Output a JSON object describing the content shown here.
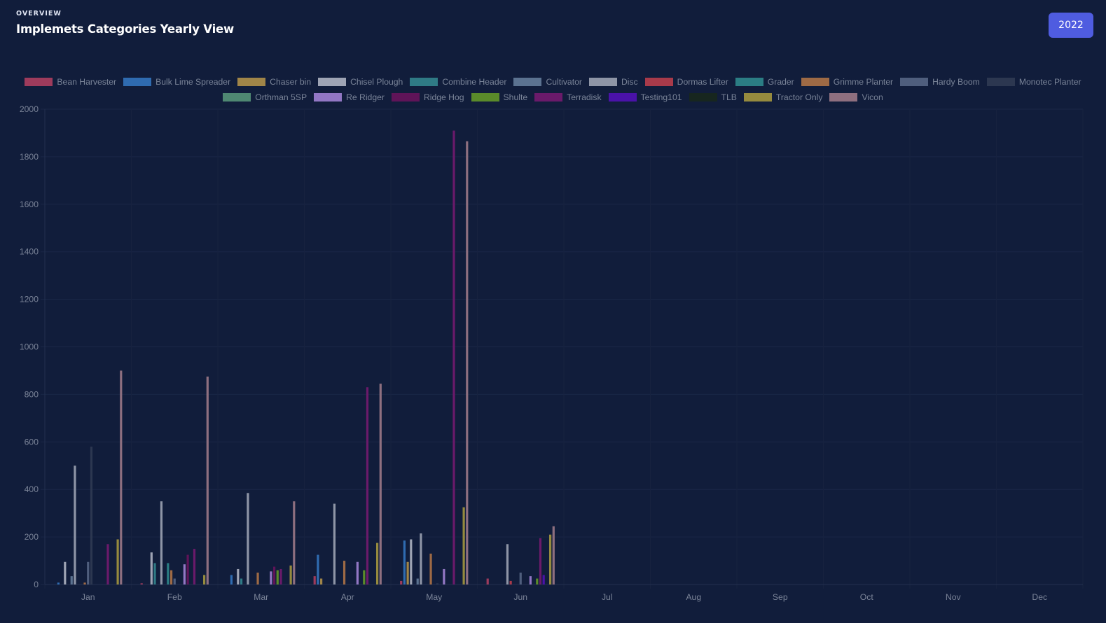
{
  "header": {
    "overline": "OVERVIEW",
    "title": "Implemets Categories Yearly View"
  },
  "year_button": {
    "label": "2022"
  },
  "chart_data": {
    "type": "bar",
    "categories": [
      "Jan",
      "Feb",
      "Mar",
      "Apr",
      "May",
      "Jun",
      "Jul",
      "Aug",
      "Sep",
      "Oct",
      "Nov",
      "Dec"
    ],
    "ylim": [
      0,
      2000
    ],
    "yticks": [
      0,
      200,
      400,
      600,
      800,
      1000,
      1200,
      1400,
      1600,
      1800,
      2000
    ],
    "legend_position": "top",
    "grid": true,
    "series": [
      {
        "name": "Bean Harvester",
        "color": "#9e3b5c",
        "values": [
          0,
          5,
          0,
          35,
          15,
          25,
          0,
          0,
          0,
          0,
          0,
          0
        ]
      },
      {
        "name": "Bulk Lime Spreader",
        "color": "#2f6bb0",
        "values": [
          8,
          0,
          40,
          125,
          185,
          0,
          0,
          0,
          0,
          0,
          0,
          0
        ]
      },
      {
        "name": "Chaser bin",
        "color": "#a08548",
        "values": [
          0,
          0,
          0,
          25,
          95,
          0,
          0,
          0,
          0,
          0,
          0,
          0
        ]
      },
      {
        "name": "Chisel Plough",
        "color": "#9ea4b4",
        "values": [
          95,
          135,
          65,
          0,
          190,
          0,
          0,
          0,
          0,
          0,
          0,
          0
        ]
      },
      {
        "name": "Combine Header",
        "color": "#2f7a85",
        "values": [
          0,
          90,
          25,
          0,
          0,
          0,
          0,
          0,
          0,
          0,
          0,
          0
        ]
      },
      {
        "name": "Cultivator",
        "color": "#5b7290",
        "values": [
          35,
          0,
          0,
          0,
          25,
          0,
          0,
          0,
          0,
          0,
          0,
          0
        ]
      },
      {
        "name": "Disc",
        "color": "#8e95a6",
        "values": [
          500,
          350,
          385,
          340,
          215,
          170,
          0,
          0,
          0,
          0,
          0,
          0
        ]
      },
      {
        "name": "Dormas Lifter",
        "color": "#a83a4a",
        "values": [
          0,
          0,
          0,
          0,
          0,
          15,
          0,
          0,
          0,
          0,
          0,
          0
        ]
      },
      {
        "name": "Grader",
        "color": "#2b7d84",
        "values": [
          0,
          90,
          0,
          0,
          0,
          0,
          0,
          0,
          0,
          0,
          0,
          0
        ]
      },
      {
        "name": "Grimme Planter",
        "color": "#9e6a45",
        "values": [
          8,
          60,
          50,
          100,
          130,
          0,
          0,
          0,
          0,
          0,
          0,
          0
        ]
      },
      {
        "name": "Hardy Boom",
        "color": "#4f5e7d",
        "values": [
          95,
          25,
          0,
          0,
          0,
          50,
          0,
          0,
          0,
          0,
          0,
          0
        ]
      },
      {
        "name": "Monotec Planter",
        "color": "#2c3750",
        "values": [
          580,
          0,
          0,
          0,
          5,
          0,
          0,
          0,
          0,
          0,
          0,
          0
        ]
      },
      {
        "name": "Orthman 5SP",
        "color": "#4f8872",
        "values": [
          0,
          0,
          0,
          0,
          0,
          0,
          0,
          0,
          0,
          0,
          0,
          0
        ]
      },
      {
        "name": "Re Ridger",
        "color": "#9277c4",
        "values": [
          0,
          85,
          55,
          95,
          65,
          35,
          0,
          0,
          0,
          0,
          0,
          0
        ]
      },
      {
        "name": "Ridge Hog",
        "color": "#5f1458",
        "values": [
          0,
          125,
          75,
          0,
          0,
          0,
          0,
          0,
          0,
          0,
          0,
          0
        ]
      },
      {
        "name": "Shulte",
        "color": "#5a8a2a",
        "values": [
          0,
          0,
          60,
          60,
          0,
          25,
          0,
          0,
          0,
          0,
          0,
          0
        ]
      },
      {
        "name": "Terradisk",
        "color": "#6a1a6a",
        "values": [
          170,
          150,
          65,
          830,
          1910,
          195,
          0,
          0,
          0,
          0,
          0,
          0
        ]
      },
      {
        "name": "Testing101",
        "color": "#4a12a8",
        "values": [
          0,
          0,
          0,
          0,
          0,
          40,
          0,
          0,
          0,
          0,
          0,
          0
        ]
      },
      {
        "name": "TLB",
        "color": "#17261f",
        "values": [
          0,
          0,
          0,
          0,
          0,
          0,
          0,
          0,
          0,
          0,
          0,
          0
        ]
      },
      {
        "name": "Tractor Only",
        "color": "#958a3e",
        "values": [
          190,
          40,
          80,
          175,
          325,
          210,
          0,
          0,
          0,
          0,
          0,
          0
        ]
      },
      {
        "name": "Vicon",
        "color": "#8e6f7f",
        "values": [
          900,
          875,
          350,
          845,
          1865,
          245,
          0,
          0,
          0,
          0,
          0,
          0
        ]
      }
    ]
  }
}
